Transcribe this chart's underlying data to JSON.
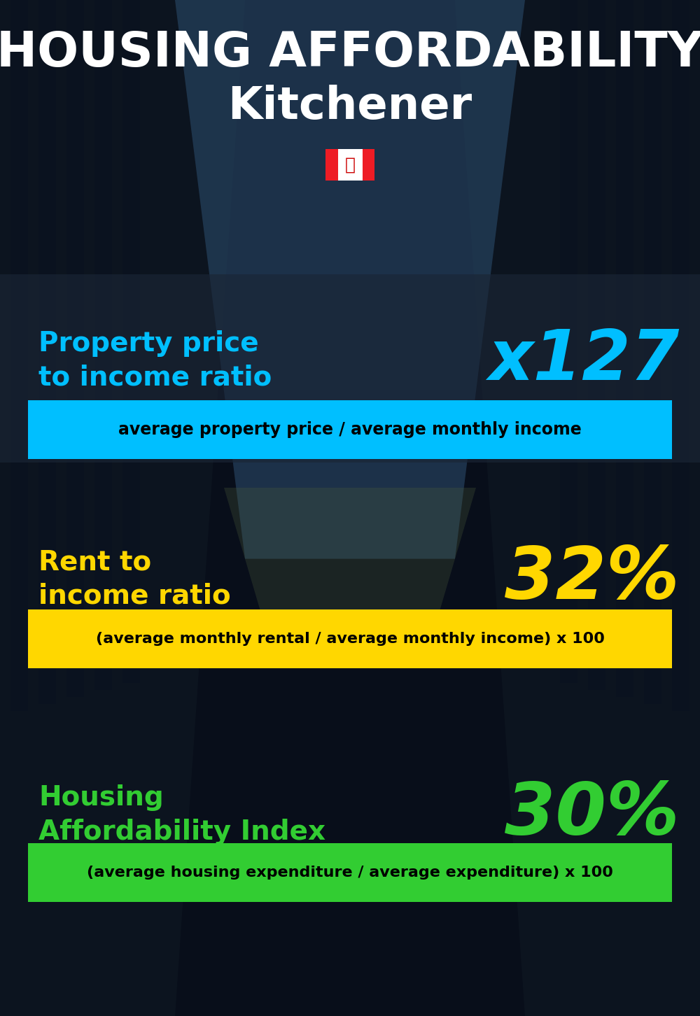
{
  "title_line1": "HOUSING AFFORDABILITY",
  "title_line2": "Kitchener",
  "section1_label": "Property price\nto income ratio",
  "section1_value": "x127",
  "section1_label_color": "#00BFFF",
  "section1_value_color": "#00BFFF",
  "section1_banner": "average property price / average monthly income",
  "section1_banner_bg": "#00BFFF",
  "section2_label": "Rent to\nincome ratio",
  "section2_value": "32%",
  "section2_label_color": "#FFD700",
  "section2_value_color": "#FFD700",
  "section2_banner": "(average monthly rental / average monthly income) x 100",
  "section2_banner_bg": "#FFD700",
  "section3_label": "Housing\nAffordability Index",
  "section3_value": "30%",
  "section3_label_color": "#32CD32",
  "section3_value_color": "#32CD32",
  "section3_banner": "(average housing expenditure / average expenditure) x 100",
  "section3_banner_bg": "#32CD32",
  "bg_color": "#080e1a",
  "title_color": "#FFFFFF",
  "subtitle_color": "#FFFFFF",
  "banner_text_color": "#000000"
}
